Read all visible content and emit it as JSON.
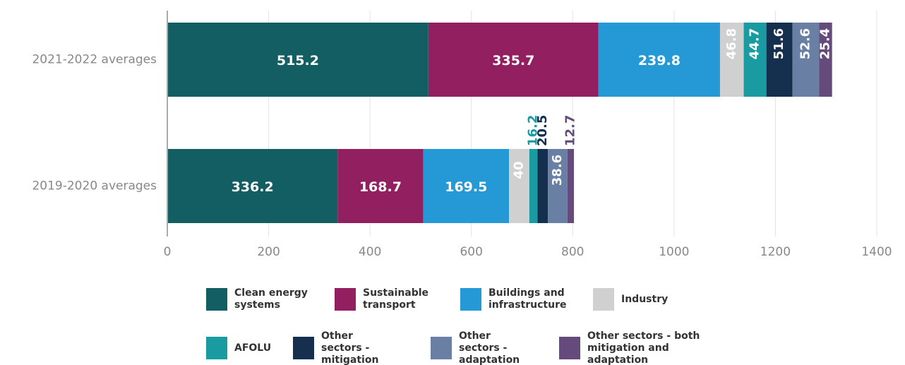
{
  "chart_data": {
    "type": "bar",
    "orientation": "horizontal",
    "stacked": true,
    "categories": [
      "2021-2022 averages",
      "2019-2020 averages"
    ],
    "series": [
      {
        "name": "Clean energy systems",
        "color": "#135e63",
        "values": [
          515.2,
          336.2
        ]
      },
      {
        "name": "Sustainable transport",
        "color": "#921f5f",
        "values": [
          335.7,
          168.7
        ]
      },
      {
        "name": "Buildings and infrastructure",
        "color": "#2599d5",
        "values": [
          239.8,
          169.5
        ]
      },
      {
        "name": "Industry",
        "color": "#d0d0d0",
        "values": [
          46.8,
          40
        ]
      },
      {
        "name": "AFOLU",
        "color": "#1a9aa1",
        "values": [
          44.7,
          16.2
        ]
      },
      {
        "name": "Other sectors - mitigation",
        "color": "#152f4e",
        "values": [
          51.6,
          20.5
        ]
      },
      {
        "name": "Other sectors - adaptation",
        "color": "#6a7fa4",
        "values": [
          52.6,
          38.6
        ]
      },
      {
        "name": "Other sectors - both mitigation and adaptation",
        "color": "#654b7b",
        "values": [
          25.4,
          12.7
        ]
      }
    ],
    "xlim": [
      0,
      1400
    ],
    "xticks": [
      0,
      200,
      400,
      600,
      800,
      1000,
      1200,
      1400
    ],
    "grid": true
  }
}
